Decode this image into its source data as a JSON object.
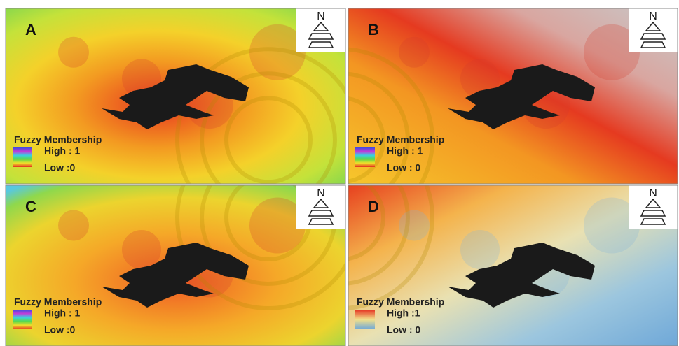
{
  "panels": [
    {
      "label": "A",
      "north": "N",
      "legend": {
        "title": "Fuzzy Membership",
        "high": "High : 1",
        "low": "Low :0"
      }
    },
    {
      "label": "B",
      "north": "N",
      "legend": {
        "title": "Fuzzy Membership",
        "high": "High : 1",
        "low": "Low : 0"
      }
    },
    {
      "label": "C",
      "north": "N",
      "legend": {
        "title": "Fuzzy Membership",
        "high": "High : 1",
        "low": "Low :0"
      }
    },
    {
      "label": "D",
      "north": "N",
      "legend": {
        "title": "Fuzzy Membership",
        "high": "High :1",
        "low": "Low : 0"
      }
    }
  ]
}
